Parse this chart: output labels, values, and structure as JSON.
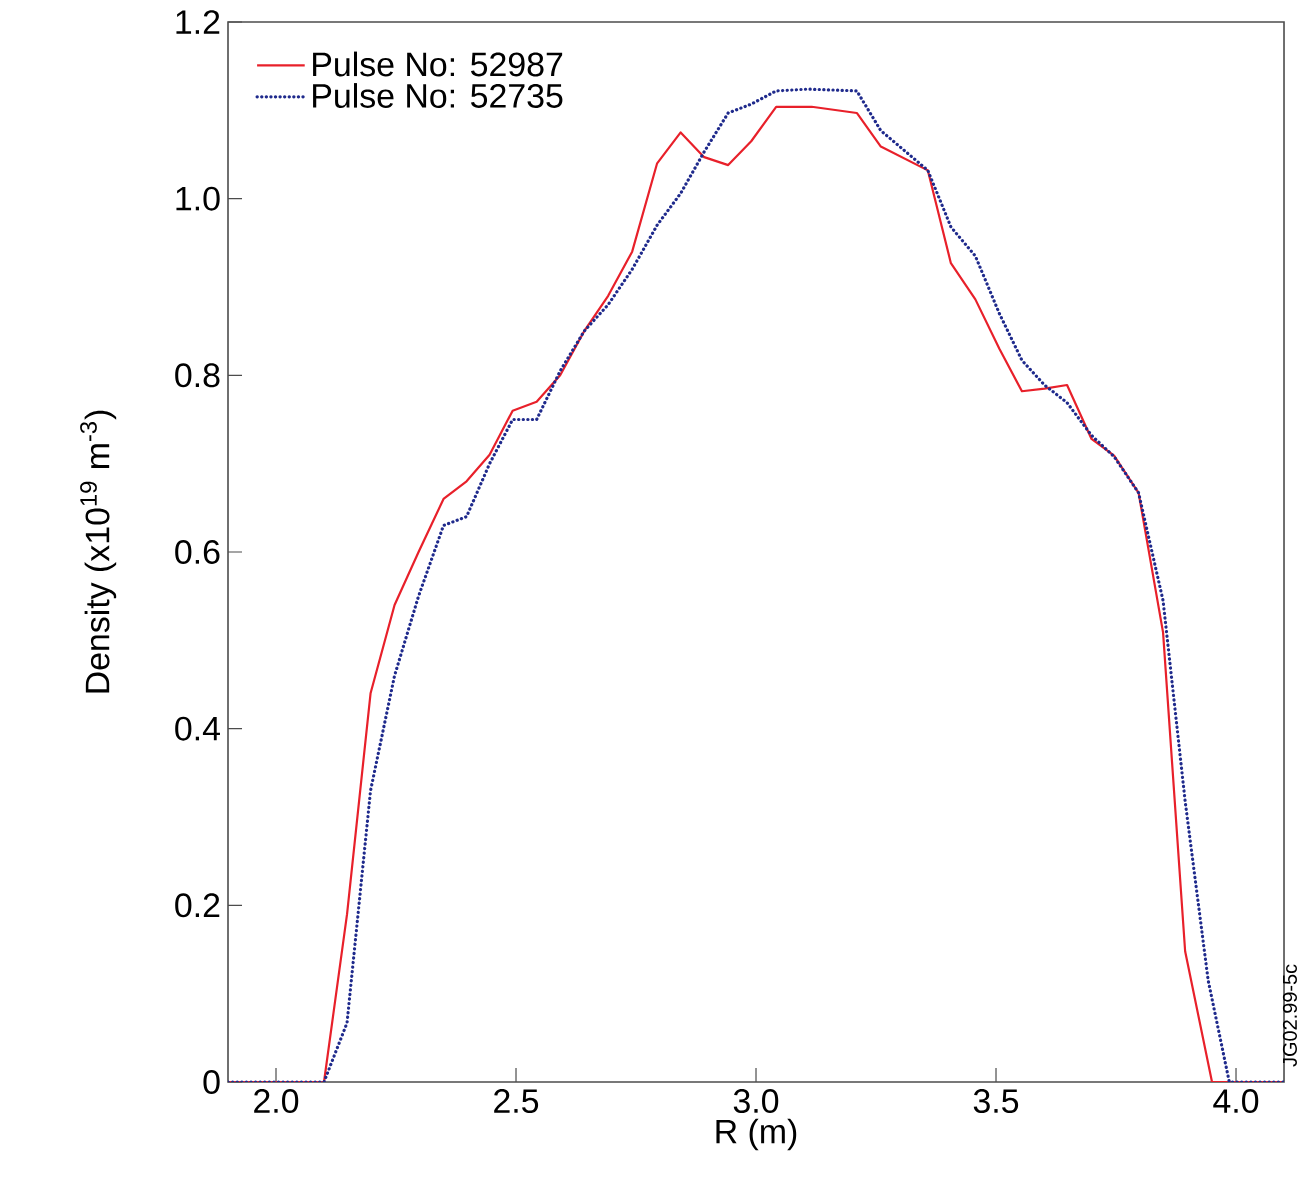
{
  "chart_data": {
    "type": "line",
    "xlabel": "R (m)",
    "ylabel": "Density (x10$^{19}$ m$^{-3}$)",
    "annotations": [
      "JG02.99-5c"
    ],
    "xlim": [
      1.9,
      4.1
    ],
    "ylim": [
      0,
      1.2
    ],
    "xticks": [
      {
        "value": 2,
        "label": "2.0"
      },
      2.5,
      {
        "value": 3,
        "label": "3.0"
      },
      3.5,
      {
        "value": 4,
        "label": "4.0"
      }
    ],
    "yticks": [
      0,
      0.2,
      0.4,
      0.6,
      0.8,
      {
        "value": 1,
        "label": "1.0"
      },
      1.2
    ],
    "legend": "top left",
    "grid": false,
    "series": [
      {
        "name": "Pulse No: 52987",
        "color": "#e8202a",
        "line_style": "solid",
        "x": [
          1.9,
          2.1,
          2.148,
          2.197,
          2.247,
          2.297,
          2.349,
          2.397,
          2.445,
          2.493,
          2.543,
          2.592,
          2.642,
          2.692,
          2.742,
          2.794,
          2.843,
          2.892,
          2.942,
          2.99,
          3.042,
          3.116,
          3.21,
          3.26,
          3.358,
          3.406,
          3.457,
          3.507,
          3.554,
          3.601,
          3.648,
          3.699,
          3.746,
          3.797,
          3.848,
          3.894,
          3.95,
          4.1
        ],
        "values": [
          0,
          0,
          0.19,
          0.44,
          0.54,
          0.6,
          0.66,
          0.68,
          0.71,
          0.76,
          0.77,
          0.8,
          0.85,
          0.89,
          0.94,
          1.04,
          1.075,
          1.047,
          1.038,
          1.065,
          1.104,
          1.104,
          1.097,
          1.059,
          1.032,
          0.927,
          0.886,
          0.83,
          0.782,
          0.785,
          0.789,
          0.728,
          0.709,
          0.667,
          0.509,
          0.148,
          0,
          0
        ]
      },
      {
        "name": "Pulse No: 52735",
        "color": "#1f2a8c",
        "line_style": "dotted",
        "x": [
          1.9,
          2.1,
          2.148,
          2.197,
          2.247,
          2.297,
          2.349,
          2.397,
          2.445,
          2.493,
          2.543,
          2.592,
          2.642,
          2.692,
          2.742,
          2.794,
          2.843,
          2.892,
          2.942,
          2.99,
          3.042,
          3.109,
          3.21,
          3.26,
          3.358,
          3.406,
          3.457,
          3.507,
          3.554,
          3.601,
          3.648,
          3.699,
          3.746,
          3.797,
          3.848,
          3.894,
          3.942,
          3.986,
          4.1
        ],
        "values": [
          0,
          0,
          0.067,
          0.33,
          0.46,
          0.55,
          0.63,
          0.64,
          0.7,
          0.75,
          0.75,
          0.805,
          0.85,
          0.88,
          0.92,
          0.97,
          1.006,
          1.053,
          1.097,
          1.107,
          1.122,
          1.124,
          1.122,
          1.077,
          1.032,
          0.968,
          0.935,
          0.87,
          0.817,
          0.789,
          0.769,
          0.732,
          0.708,
          0.667,
          0.545,
          0.318,
          0.115,
          0,
          0
        ]
      }
    ]
  }
}
